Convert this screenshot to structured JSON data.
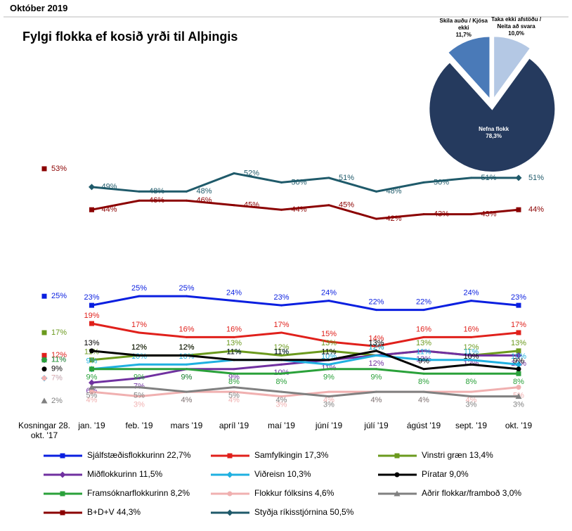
{
  "chart_data": [
    {
      "type": "line",
      "subtitle": "Október 2019",
      "title": "Fylgi flokka ef kosið yrði til Alþingis",
      "categories": [
        "Kosningar 28. okt. '17",
        "jan. '19",
        "feb. '19",
        "mars '19",
        "apríl '19",
        "maí '19",
        "júní '19",
        "júlí '19",
        "ágúst '19",
        "sept. '19",
        "okt. '19"
      ],
      "ylim": [
        0,
        55
      ],
      "series": [
        {
          "name": "Sjálfstæðisflokkurinn 22,7%",
          "color": "#0a1fe0",
          "marker": "square",
          "values": [
            25,
            23,
            25,
            25,
            24,
            23,
            24,
            22,
            22,
            24,
            23
          ],
          "value_labels": [
            "25%",
            "23%",
            "25%",
            "25%",
            "24%",
            "23%",
            "24%",
            "22%",
            "22%",
            "24%",
            "23%"
          ]
        },
        {
          "name": "Samfylkingin 17,3%",
          "color": "#e0201b",
          "marker": "square",
          "values": [
            12,
            19,
            17,
            16,
            16,
            17,
            15,
            14,
            16,
            16,
            17
          ],
          "value_labels": [
            "12%",
            "19%",
            "17%",
            "16%",
            "16%",
            "17%",
            "15%",
            "14%",
            "16%",
            "16%",
            "17%"
          ]
        },
        {
          "name": "Vinstri græn 13,4%",
          "color": "#6b9a1e",
          "marker": "square",
          "values": [
            17,
            11,
            12,
            12,
            13,
            12,
            13,
            12,
            13,
            12,
            13
          ],
          "value_labels": [
            "17%",
            "11%",
            "12%",
            "12%",
            "13%",
            "12%",
            "13%",
            "12%",
            "13%",
            "12%",
            "13%"
          ]
        },
        {
          "name": "Miðflokkurinn 11,5%",
          "color": "#7030a0",
          "marker": "diamond",
          "values": [
            11,
            6,
            7,
            9,
            9,
            10,
            11,
            12,
            13,
            12,
            12
          ],
          "value_labels": [
            "11%",
            "6%",
            "7%",
            "9%",
            "9%",
            "10%",
            "11%",
            "12%",
            "13%",
            "12%",
            "12%"
          ]
        },
        {
          "name": "Viðreisn 10,3%",
          "color": "#1fb0e0",
          "marker": "diamond",
          "values": [
            7,
            9,
            10,
            10,
            11,
            11,
            10,
            12,
            11,
            11,
            10
          ],
          "value_labels": [
            "7%",
            "9%",
            "10%",
            "10%",
            "11%",
            "11%",
            "10%",
            "12%",
            "11%",
            "11%",
            "10%"
          ]
        },
        {
          "name": "Píratar 9,0%",
          "color": "#000000",
          "marker": "circle",
          "values": [
            9,
            13,
            12,
            12,
            11,
            11,
            11,
            13,
            9,
            10,
            9
          ],
          "value_labels": [
            "9%",
            "13%",
            "12%",
            "12%",
            "11%",
            "11%",
            "11%",
            "13%",
            "9%",
            "10%",
            "9%"
          ]
        },
        {
          "name": "Framsóknarflokkurinn 8,2%",
          "color": "#2aa13a",
          "marker": "square",
          "values": [
            11,
            9,
            9,
            9,
            8,
            8,
            9,
            9,
            8,
            8,
            8
          ],
          "value_labels": [
            "11%",
            "9%",
            "9%",
            "9%",
            "8%",
            "8%",
            "9%",
            "9%",
            "8%",
            "8%",
            "8%"
          ]
        },
        {
          "name": "Flokkur fólksins 4,6%",
          "color": "#f0b0b0",
          "marker": "circle",
          "values": [
            7,
            4,
            3,
            4,
            4,
            3,
            4,
            4,
            4,
            4,
            5
          ],
          "value_labels": [
            "7%",
            "4%",
            "3%",
            "4%",
            "4%",
            "3%",
            "4%",
            "4%",
            "4%",
            "4%",
            "5%"
          ]
        },
        {
          "name": "Aðrir flokkar/framboð 3,0%",
          "color": "#808080",
          "marker": "triangle",
          "values": [
            2,
            5,
            5,
            4,
            5,
            4,
            3,
            4,
            4,
            3,
            3
          ],
          "value_labels": [
            "2%",
            "5%",
            "5%",
            "4%",
            "5%",
            "4%",
            "3%",
            "4%",
            "4%",
            "3%",
            "3%"
          ]
        },
        {
          "name": "B+D+V 44,3%",
          "color": "#8b0000",
          "marker": "square",
          "values": [
            53,
            44,
            46,
            46,
            45,
            44,
            45,
            42,
            43,
            43,
            44
          ],
          "value_labels": [
            "53%",
            "44%",
            "46%",
            "46%",
            "45%",
            "44%",
            "45%",
            "42%",
            "43%",
            "43%",
            "44%"
          ]
        },
        {
          "name": "Styðja ríkisstjórnina 50,5%",
          "color": "#1f5a6a",
          "marker": "diamond",
          "values": [
            null,
            49,
            48,
            48,
            52,
            50,
            51,
            48,
            50,
            51,
            51
          ],
          "value_labels": [
            null,
            "49%",
            "48%",
            "48%",
            "52%",
            "50%",
            "51%",
            "48%",
            "50%",
            "51%",
            "51%"
          ]
        }
      ]
    },
    {
      "type": "pie",
      "categories": [
        "Taka ekki afstöðu / Neita að svara",
        "Nefna flokk",
        "Skila auðu / Kjósa ekki"
      ],
      "values": [
        10.0,
        78.3,
        11.7
      ],
      "value_labels": [
        "10,0%",
        "78,3%",
        "11,7%"
      ],
      "colors": [
        "#b4c8e4",
        "#253a5e",
        "#4a7ab8"
      ]
    }
  ]
}
